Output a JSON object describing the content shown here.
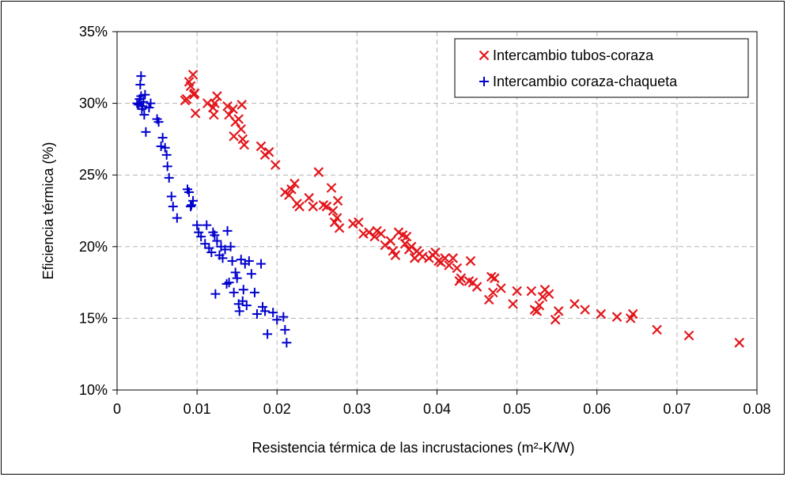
{
  "chart_data": {
    "type": "scatter",
    "title": "",
    "xlabel": "Resistencia térmica de las incrustaciones (m²-K/W)",
    "ylabel": "Eficiencia  térmica (%)",
    "xlim": [
      0,
      0.08
    ],
    "ylim": [
      10,
      35
    ],
    "x_ticks": [
      0,
      0.01,
      0.02,
      0.03,
      0.04,
      0.05,
      0.06,
      0.07,
      0.08
    ],
    "x_tick_labels": [
      "0",
      "0.01",
      "0.02",
      "0.03",
      "0.04",
      "0.05",
      "0.06",
      "0.07",
      "0.08"
    ],
    "y_ticks": [
      10,
      15,
      20,
      25,
      30,
      35
    ],
    "y_tick_labels": [
      "10%",
      "15%",
      "20%",
      "25%",
      "30%",
      "35%"
    ],
    "grid": true,
    "legend_position": "top-right",
    "series": [
      {
        "name": "Intercambio tubos-coraza",
        "marker": "x",
        "color": "#e3161b",
        "points": [
          [
            0.0085,
            30.2
          ],
          [
            0.0087,
            30.3
          ],
          [
            0.009,
            31.5
          ],
          [
            0.0092,
            31.2
          ],
          [
            0.0095,
            32.0
          ],
          [
            0.0097,
            30.7
          ],
          [
            0.0098,
            29.3
          ],
          [
            0.0096,
            30.6
          ],
          [
            0.0113,
            30.0
          ],
          [
            0.012,
            29.7
          ],
          [
            0.0122,
            30.0
          ],
          [
            0.0125,
            30.5
          ],
          [
            0.0121,
            29.2
          ],
          [
            0.0138,
            29.8
          ],
          [
            0.014,
            29.2
          ],
          [
            0.0145,
            29.6
          ],
          [
            0.0148,
            28.7
          ],
          [
            0.0152,
            28.9
          ],
          [
            0.0146,
            27.7
          ],
          [
            0.0155,
            28.2
          ],
          [
            0.0157,
            27.5
          ],
          [
            0.0159,
            27.1
          ],
          [
            0.0156,
            29.9
          ],
          [
            0.018,
            27.0
          ],
          [
            0.0185,
            26.4
          ],
          [
            0.019,
            26.6
          ],
          [
            0.0198,
            25.7
          ],
          [
            0.021,
            23.8
          ],
          [
            0.0215,
            23.6
          ],
          [
            0.0218,
            24.0
          ],
          [
            0.0222,
            24.4
          ],
          [
            0.0225,
            23.0
          ],
          [
            0.0228,
            22.8
          ],
          [
            0.024,
            23.4
          ],
          [
            0.0245,
            22.8
          ],
          [
            0.0252,
            25.2
          ],
          [
            0.0258,
            22.9
          ],
          [
            0.0262,
            22.8
          ],
          [
            0.0268,
            24.1
          ],
          [
            0.027,
            22.5
          ],
          [
            0.0272,
            21.7
          ],
          [
            0.0275,
            22.0
          ],
          [
            0.0278,
            21.3
          ],
          [
            0.0276,
            23.2
          ],
          [
            0.0295,
            21.6
          ],
          [
            0.0302,
            21.7
          ],
          [
            0.0308,
            20.9
          ],
          [
            0.0315,
            21.0
          ],
          [
            0.0322,
            20.7
          ],
          [
            0.0325,
            21.1
          ],
          [
            0.033,
            20.9
          ],
          [
            0.0335,
            20.1
          ],
          [
            0.0342,
            20.4
          ],
          [
            0.0345,
            19.7
          ],
          [
            0.0348,
            19.4
          ],
          [
            0.0352,
            21.0
          ],
          [
            0.0357,
            20.8
          ],
          [
            0.036,
            20.2
          ],
          [
            0.0362,
            20.7
          ],
          [
            0.0365,
            19.8
          ],
          [
            0.0368,
            20.0
          ],
          [
            0.0372,
            19.2
          ],
          [
            0.0375,
            19.7
          ],
          [
            0.0378,
            19.5
          ],
          [
            0.0382,
            19.3
          ],
          [
            0.039,
            19.2
          ],
          [
            0.0395,
            19.4
          ],
          [
            0.0398,
            19.6
          ],
          [
            0.0402,
            19.0
          ],
          [
            0.0405,
            18.9
          ],
          [
            0.041,
            19.2
          ],
          [
            0.0415,
            18.7
          ],
          [
            0.042,
            19.2
          ],
          [
            0.0425,
            18.5
          ],
          [
            0.0428,
            17.6
          ],
          [
            0.043,
            17.8
          ],
          [
            0.044,
            17.6
          ],
          [
            0.0442,
            19.0
          ],
          [
            0.0445,
            17.5
          ],
          [
            0.045,
            17.2
          ],
          [
            0.0465,
            16.3
          ],
          [
            0.0468,
            17.9
          ],
          [
            0.047,
            16.8
          ],
          [
            0.0472,
            17.8
          ],
          [
            0.048,
            17.1
          ],
          [
            0.0495,
            16.0
          ],
          [
            0.05,
            16.9
          ],
          [
            0.0518,
            16.9
          ],
          [
            0.0522,
            15.6
          ],
          [
            0.0525,
            15.5
          ],
          [
            0.0528,
            15.9
          ],
          [
            0.0532,
            16.5
          ],
          [
            0.0535,
            17.0
          ],
          [
            0.054,
            16.7
          ],
          [
            0.0548,
            14.9
          ],
          [
            0.0552,
            15.5
          ],
          [
            0.0572,
            16.0
          ],
          [
            0.0585,
            15.6
          ],
          [
            0.0605,
            15.3
          ],
          [
            0.0625,
            15.1
          ],
          [
            0.0642,
            15.0
          ],
          [
            0.0645,
            15.3
          ],
          [
            0.0675,
            14.2
          ],
          [
            0.0715,
            13.8
          ],
          [
            0.0778,
            13.3
          ]
        ]
      },
      {
        "name": "Intercambio coraza-chaqueta",
        "marker": "+",
        "color": "#0000cc",
        "points": [
          [
            0.0025,
            30.0
          ],
          [
            0.0027,
            29.9
          ],
          [
            0.0028,
            30.3
          ],
          [
            0.0029,
            31.3
          ],
          [
            0.003,
            31.9
          ],
          [
            0.003,
            30.5
          ],
          [
            0.0031,
            29.6
          ],
          [
            0.0032,
            29.8
          ],
          [
            0.0033,
            30.1
          ],
          [
            0.0034,
            29.2
          ],
          [
            0.0035,
            30.6
          ],
          [
            0.0036,
            28.0
          ],
          [
            0.004,
            29.7
          ],
          [
            0.0042,
            30.0
          ],
          [
            0.005,
            28.9
          ],
          [
            0.0052,
            28.7
          ],
          [
            0.0055,
            27.0
          ],
          [
            0.0057,
            27.6
          ],
          [
            0.006,
            26.9
          ],
          [
            0.0062,
            26.4
          ],
          [
            0.0063,
            25.6
          ],
          [
            0.0065,
            24.8
          ],
          [
            0.0068,
            23.5
          ],
          [
            0.007,
            22.8
          ],
          [
            0.0075,
            22.0
          ],
          [
            0.0088,
            24.0
          ],
          [
            0.009,
            23.8
          ],
          [
            0.0092,
            22.8
          ],
          [
            0.0093,
            22.9
          ],
          [
            0.0095,
            23.2
          ],
          [
            0.01,
            21.5
          ],
          [
            0.0102,
            21.0
          ],
          [
            0.0105,
            20.7
          ],
          [
            0.011,
            20.2
          ],
          [
            0.0112,
            21.5
          ],
          [
            0.0115,
            19.9
          ],
          [
            0.0118,
            19.6
          ],
          [
            0.012,
            21.0
          ],
          [
            0.0122,
            20.8
          ],
          [
            0.0123,
            16.7
          ],
          [
            0.0125,
            20.4
          ],
          [
            0.0128,
            19.4
          ],
          [
            0.013,
            20.0
          ],
          [
            0.0132,
            19.2
          ],
          [
            0.0135,
            19.8
          ],
          [
            0.0137,
            17.4
          ],
          [
            0.0138,
            21.1
          ],
          [
            0.014,
            17.5
          ],
          [
            0.0142,
            20.0
          ],
          [
            0.0144,
            19.0
          ],
          [
            0.0146,
            16.8
          ],
          [
            0.0148,
            18.2
          ],
          [
            0.015,
            17.8
          ],
          [
            0.0152,
            16.0
          ],
          [
            0.0153,
            15.5
          ],
          [
            0.0155,
            19.1
          ],
          [
            0.0157,
            16.2
          ],
          [
            0.0158,
            17.0
          ],
          [
            0.016,
            18.8
          ],
          [
            0.0162,
            15.9
          ],
          [
            0.0165,
            19.0
          ],
          [
            0.0168,
            18.1
          ],
          [
            0.0172,
            16.8
          ],
          [
            0.0175,
            15.3
          ],
          [
            0.018,
            18.8
          ],
          [
            0.0182,
            15.8
          ],
          [
            0.0185,
            15.5
          ],
          [
            0.0188,
            13.9
          ],
          [
            0.0195,
            15.4
          ],
          [
            0.02,
            14.9
          ],
          [
            0.0208,
            15.1
          ],
          [
            0.021,
            14.2
          ],
          [
            0.0212,
            13.3
          ]
        ]
      }
    ]
  }
}
